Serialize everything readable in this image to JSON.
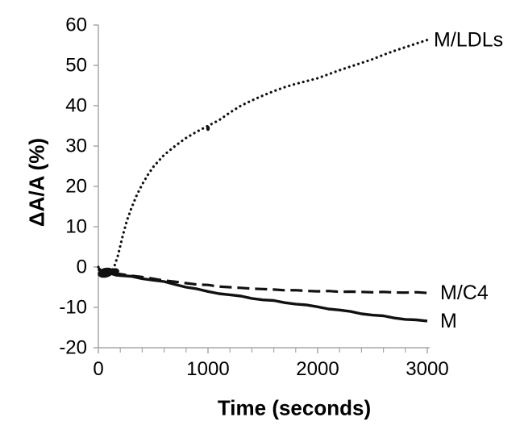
{
  "figure": {
    "background": "#ffffff",
    "axis_color": "#a6a6a6",
    "series_color": "#111111",
    "text_color": "#000000"
  },
  "chart_data": {
    "type": "line",
    "title": "",
    "xlabel": "Time (seconds)",
    "ylabel": "ΔA/A (%)",
    "xlim": [
      0,
      3000
    ],
    "ylim": [
      -20,
      60
    ],
    "x_major_ticks": [
      0,
      1000,
      2000,
      3000
    ],
    "x_minor_tick_step": 200,
    "y_ticks": [
      60,
      50,
      40,
      30,
      20,
      10,
      0,
      -10,
      -20
    ],
    "grid": false,
    "legend_position": "inline labels at right end of each curve",
    "annotations": [
      "dense cluster of overlapping data points near t = 0-150 s at ΔA/A ≈ 0 to -2%"
    ],
    "series": [
      {
        "name": "M/LDLs",
        "line_style": "dotted",
        "x": [
          0,
          30,
          60,
          90,
          120,
          150,
          180,
          220,
          260,
          300,
          350,
          400,
          450,
          500,
          600,
          700,
          800,
          900,
          1000,
          1100,
          1200,
          1300,
          1400,
          1500,
          1600,
          1700,
          1800,
          1900,
          2000,
          2100,
          2200,
          2300,
          2400,
          2500,
          2600,
          2700,
          2800,
          2900,
          3000
        ],
        "y": [
          0,
          -0.8,
          -1.6,
          -1.8,
          -1.2,
          0.5,
          3,
          7.5,
          11.5,
          14.5,
          17.8,
          20.5,
          22.8,
          24.8,
          27.8,
          30,
          32,
          33.6,
          35,
          36.4,
          38.3,
          40,
          41.3,
          42.5,
          43.6,
          44.6,
          45.4,
          46.1,
          46.8,
          47.8,
          48.8,
          49.7,
          50.6,
          51.5,
          52.6,
          53.6,
          54.5,
          55.4,
          56.3
        ]
      },
      {
        "name": "M/C4",
        "line_style": "dashed",
        "x": [
          0,
          40,
          80,
          120,
          160,
          200,
          300,
          400,
          500,
          600,
          700,
          800,
          900,
          1000,
          1100,
          1200,
          1300,
          1400,
          1500,
          1600,
          1700,
          1800,
          1900,
          2000,
          2100,
          2200,
          2300,
          2400,
          2500,
          2600,
          2700,
          2800,
          2900,
          3000
        ],
        "y": [
          -0.3,
          -1.1,
          -1.8,
          -1.4,
          -1.6,
          -1.8,
          -2.1,
          -2.5,
          -2.9,
          -3.3,
          -3.7,
          -4,
          -4.3,
          -4.5,
          -4.8,
          -5,
          -5.2,
          -5.3,
          -5.5,
          -5.6,
          -5.7,
          -5.8,
          -5.9,
          -6,
          -6,
          -6.1,
          -6.1,
          -6.2,
          -6.2,
          -6.2,
          -6.3,
          -6.3,
          -6.3,
          -6.4
        ]
      },
      {
        "name": "M",
        "line_style": "solid",
        "x": [
          0,
          40,
          80,
          120,
          160,
          200,
          300,
          400,
          500,
          600,
          700,
          800,
          900,
          1000,
          1100,
          1200,
          1300,
          1400,
          1500,
          1600,
          1700,
          1800,
          1900,
          2000,
          2100,
          2200,
          2300,
          2400,
          2500,
          2600,
          2700,
          2800,
          2900,
          3000
        ],
        "y": [
          -0.5,
          -1.4,
          -2.2,
          -1.7,
          -1.9,
          -2.1,
          -2.4,
          -2.8,
          -3.2,
          -3.7,
          -4.3,
          -4.9,
          -5.5,
          -6.1,
          -6.5,
          -6.9,
          -7.3,
          -7.7,
          -8.1,
          -8.4,
          -8.8,
          -9.1,
          -9.5,
          -9.9,
          -10.3,
          -10.7,
          -11.1,
          -11.5,
          -11.9,
          -12.2,
          -12.6,
          -12.9,
          -13.2,
          -13.4
        ]
      }
    ]
  }
}
